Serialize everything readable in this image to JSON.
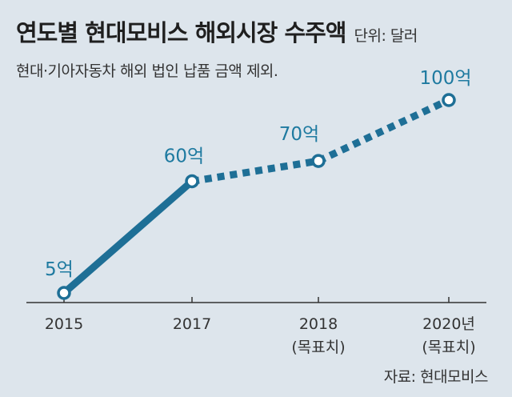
{
  "header": {
    "title": "연도별 현대모비스 해외시장 수주액",
    "unit": "단위: 달러",
    "note": "현대·기아자동차 해외 법인 납품 금액 제외."
  },
  "footer": {
    "source": "자료: 현대모비스"
  },
  "colors": {
    "line": "#1e6f96",
    "label": "#1e7aa0",
    "axis": "#333333",
    "background": "#dde5ec"
  },
  "chart_data": {
    "type": "line",
    "title": "연도별 현대모비스 해외시장 수주액",
    "x": [
      "2015",
      "2017",
      "2018",
      "2020년"
    ],
    "x_sublabels": [
      "",
      "",
      "(목표치)",
      "(목표치)"
    ],
    "series": [
      {
        "values": [
          5,
          60,
          70,
          100
        ],
        "data_labels": [
          "5억",
          "60억",
          "70억",
          "100억"
        ],
        "line_style": [
          "solid",
          "dotted",
          "dotted"
        ]
      }
    ]
  }
}
